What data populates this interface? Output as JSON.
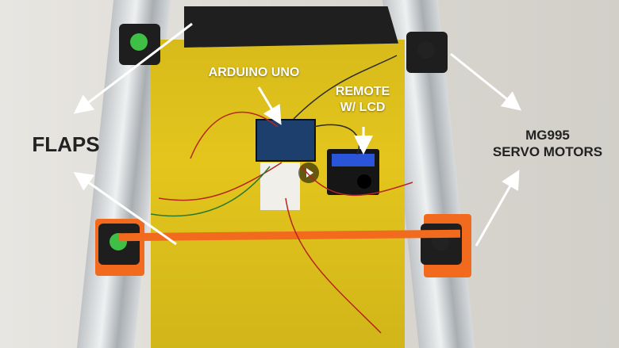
{
  "labels": {
    "arduino": "ARDUINO UNO",
    "remote_line1": "REMOTE",
    "remote_line2": "W/ LCD",
    "flaps": "FLAPS",
    "servo_line1": "MG995",
    "servo_line2": "SERVO MOTORS"
  },
  "colors": {
    "board": "#e3c51c",
    "printed_parts": "#f26a1d",
    "servo_horn": "#3fbf45",
    "annotation_text_on_board": "#ffffff",
    "annotation_text_on_background": "#222222"
  },
  "icons": {
    "play": "play-icon"
  }
}
